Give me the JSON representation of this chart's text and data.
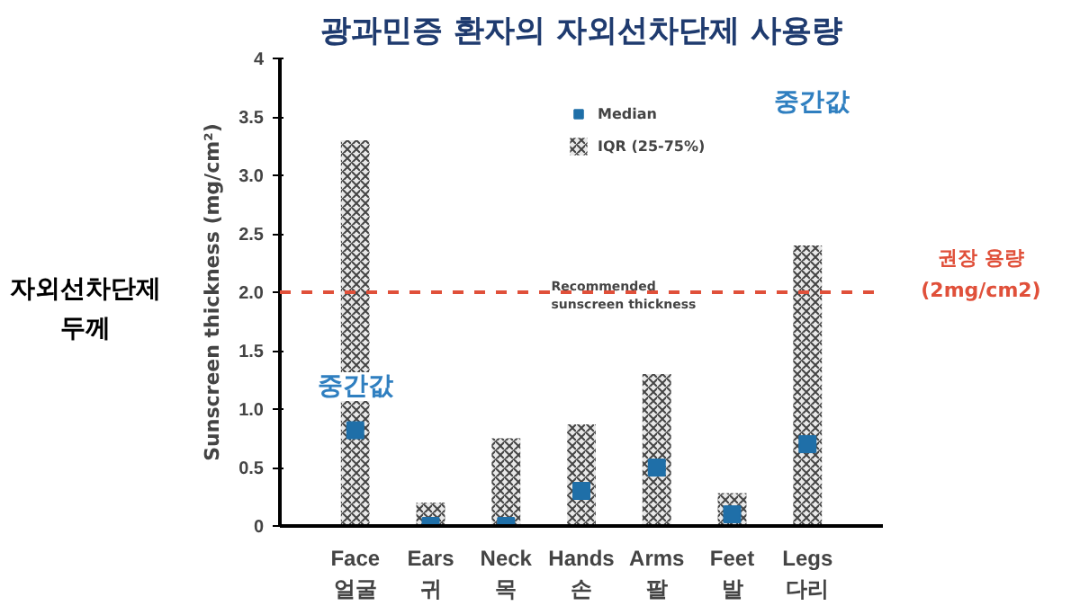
{
  "chart_data": {
    "type": "bar",
    "title": "광과민증 환자의 자외선차단제 사용량",
    "ylabel": "Sunscreen thickness (mg/cm²)",
    "categories": [
      "Face\n얼굴",
      "Ears\n귀",
      "Neck\n목",
      "Hands\n손",
      "Arms\n팔",
      "Feet\n발",
      "Legs\n다리"
    ],
    "series": [
      {
        "name": "Median",
        "type": "scatter",
        "marker": "square",
        "color": "#1f6fa8",
        "values": [
          0.82,
          0,
          0,
          0.3,
          0.5,
          0.1,
          0.7
        ]
      },
      {
        "name": "IQR (25-75%)",
        "color": "#444444",
        "values": [
          3.3,
          0.2,
          0.75,
          0.87,
          1.3,
          0.28,
          2.4
        ]
      }
    ],
    "ylim": [
      0,
      4
    ],
    "yticks": [
      0,
      {
        "value": 0.5,
        "label": "0.5"
      },
      {
        "value": 1,
        "label": "1.0"
      },
      {
        "value": 1.5,
        "label": "1.5"
      },
      {
        "value": 2,
        "label": "2.0"
      },
      {
        "value": 2.5,
        "label": "2.5"
      },
      {
        "value": 3,
        "label": "3.0"
      },
      {
        "value": 3.5,
        "label": "3.5"
      },
      4
    ],
    "ref_lines": [
      {
        "axis": "y",
        "value": 2,
        "label": "Recommended\nsunscreen thickness",
        "color": "#e0503a",
        "line_style": "dashed"
      }
    ],
    "annotations": [
      "중간값",
      "중간값",
      "자외선차단제\n두께",
      "권장 용량\n(2mg/cm2)"
    ],
    "grid": false,
    "legend": "top right"
  }
}
